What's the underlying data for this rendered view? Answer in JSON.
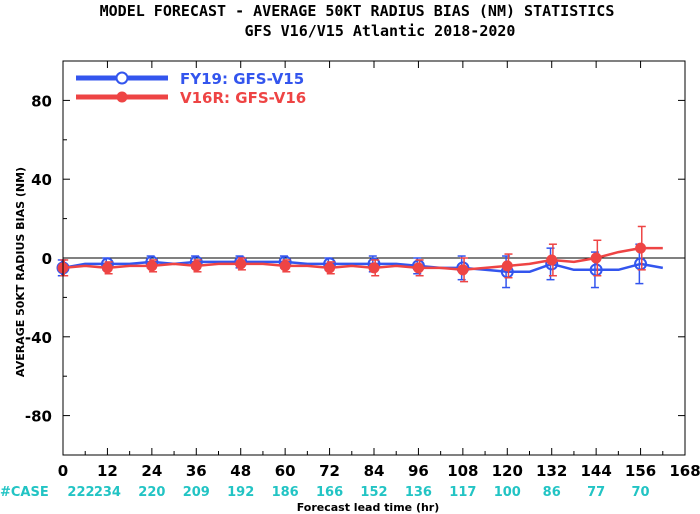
{
  "chart_data": {
    "type": "line",
    "title": "MODEL FORECAST - AVERAGE 50KT RADIUS BIAS (NM) STATISTICS",
    "subtitle": "GFS V16/V15 Atlantic 2018-2020",
    "xlabel": "Forecast lead time (hr)",
    "ylabel": "AVERAGE 50KT RADIUS BIAS (NM)",
    "xlim": [
      0,
      168
    ],
    "ylim": [
      -100,
      100
    ],
    "xticks": [
      0,
      12,
      24,
      36,
      48,
      60,
      72,
      84,
      96,
      108,
      120,
      132,
      144,
      156,
      168
    ],
    "xtick_labels": [
      "0",
      "12",
      "24",
      "36",
      "48",
      "60",
      "72",
      "84",
      "96",
      "108",
      "120",
      "132",
      "144",
      "156",
      "168"
    ],
    "yticks": [
      -80,
      -40,
      0,
      40,
      80
    ],
    "ytick_labels": [
      "-80",
      "-40",
      "0",
      "40",
      "80"
    ],
    "grid": false,
    "legend_position": "top-left",
    "zero_line": true,
    "case_label": "#CASE",
    "cases": [
      {
        "x": 0,
        "n": "222"
      },
      {
        "x": 12,
        "n": "234"
      },
      {
        "x": 24,
        "n": "220"
      },
      {
        "x": 36,
        "n": "209"
      },
      {
        "x": 48,
        "n": "192"
      },
      {
        "x": 60,
        "n": "186"
      },
      {
        "x": 72,
        "n": "166"
      },
      {
        "x": 84,
        "n": "152"
      },
      {
        "x": 96,
        "n": "136"
      },
      {
        "x": 108,
        "n": "117"
      },
      {
        "x": 120,
        "n": "100"
      },
      {
        "x": 132,
        "n": "86"
      },
      {
        "x": 144,
        "n": "77"
      },
      {
        "x": 156,
        "n": "70"
      }
    ],
    "series": [
      {
        "name": "FY19: GFS-V15",
        "color": "#3355ee",
        "marker": "open-circle",
        "line_x": [
          0,
          6,
          12,
          18,
          24,
          30,
          36,
          42,
          48,
          54,
          60,
          66,
          72,
          78,
          84,
          90,
          96,
          102,
          108,
          114,
          120,
          126,
          132,
          138,
          144,
          150,
          156,
          162
        ],
        "line_y": [
          -5,
          -3,
          -3,
          -3,
          -2,
          -3,
          -2,
          -2,
          -2,
          -2,
          -2,
          -3,
          -3,
          -3,
          -3,
          -3,
          -4,
          -5,
          -5,
          -6,
          -7,
          -7,
          -3,
          -6,
          -6,
          -6,
          -3,
          -5
        ],
        "points_x": [
          0,
          12,
          24,
          36,
          48,
          60,
          72,
          84,
          96,
          108,
          120,
          132,
          144,
          156
        ],
        "points_y": [
          -5,
          -3,
          -2,
          -2,
          -2,
          -2,
          -3,
          -3,
          -4,
          -5,
          -7,
          -3,
          -6,
          -3
        ],
        "err": [
          4,
          3,
          3,
          3,
          3,
          3,
          3,
          4,
          4,
          6,
          8,
          8,
          9,
          10
        ]
      },
      {
        "name": "V16R: GFS-V16",
        "color": "#ee4444",
        "marker": "filled-circle",
        "line_x": [
          0,
          6,
          12,
          18,
          24,
          30,
          36,
          42,
          48,
          54,
          60,
          66,
          72,
          78,
          84,
          90,
          96,
          102,
          108,
          114,
          120,
          126,
          132,
          138,
          144,
          150,
          156,
          162
        ],
        "line_y": [
          -5,
          -4,
          -5,
          -4,
          -4,
          -3,
          -4,
          -3,
          -3,
          -3,
          -4,
          -4,
          -5,
          -4,
          -5,
          -4,
          -5,
          -5,
          -6,
          -5,
          -4,
          -3,
          -1,
          -2,
          0,
          3,
          5,
          5
        ],
        "points_x": [
          0,
          12,
          24,
          36,
          48,
          60,
          72,
          84,
          96,
          108,
          120,
          132,
          144,
          156
        ],
        "points_y": [
          -5,
          -5,
          -4,
          -4,
          -3,
          -4,
          -5,
          -5,
          -5,
          -6,
          -4,
          -1,
          0,
          5
        ],
        "err": [
          4,
          3,
          3,
          3,
          3,
          3,
          3,
          4,
          4,
          6,
          6,
          8,
          9,
          11
        ]
      }
    ]
  }
}
